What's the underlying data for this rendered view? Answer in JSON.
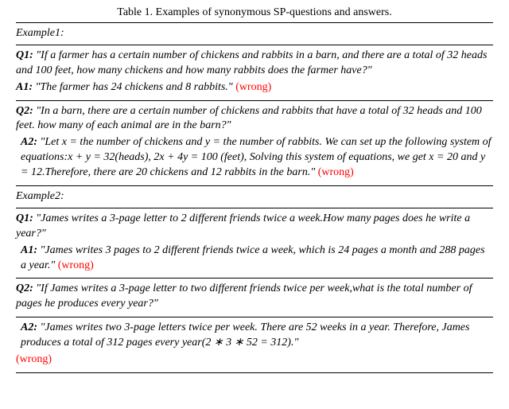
{
  "caption": "Table 1. Examples of synonymous SP-questions and answers.",
  "ex1": {
    "label": "Example1:",
    "q1_label": "Q1:",
    "q1": "\"If a farmer has a certain number of chickens and rabbits in a barn, and there are a total of 32 heads and 100 feet, how many chickens and how many rabbits does the farmer have?\"",
    "a1_label": "A1:",
    "a1": "\"The farmer has 24 chickens and 8 rabbits.\"",
    "a1_wrong": "(wrong)",
    "q2_label": "Q2:",
    "q2": "\"In a barn, there are a certain number of chickens and rabbits that have a total of 32 heads and 100 feet. how many of each animal are in the barn?\"",
    "a2_label": "A2:",
    "a2": "\"Let x = the number of chickens and y = the number of rabbits. We can set up the following system of equations:x + y = 32(heads), 2x + 4y = 100 (feet), Solving this system of equations, we get x = 20 and y = 12.Therefore, there are 20 chickens and 12 rabbits in the barn.\"",
    "a2_wrong": "(wrong)"
  },
  "ex2": {
    "label": "Example2:",
    "q1_label": "Q1:",
    "q1": "\"James writes a 3-page letter to 2 different friends twice a week.How many pages does he write a year?\"",
    "a1_label": "A1:",
    "a1": "\"James writes 3 pages to 2 different friends twice a week, which is 24 pages a month and 288 pages a year.\"",
    "a1_wrong": "(wrong)",
    "q2_label": "Q2:",
    "q2": "\"If James writes a 3-page letter to two different friends twice per week,what is the total number of pages he produces every year?\"",
    "a2_label": "A2:",
    "a2": "\"James writes two 3-page letters twice per week. There are 52 weeks in a year. Therefore, James produces a total of 312 pages every year(2 ∗ 3 ∗ 52 = 312).\"",
    "a2_wrong": "(wrong)"
  }
}
